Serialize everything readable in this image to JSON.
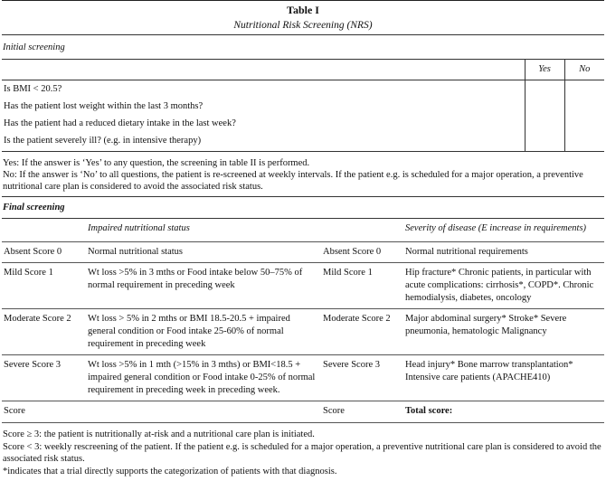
{
  "header": {
    "title": "Table I",
    "subtitle": "Nutritional Risk Screening (NRS)"
  },
  "initial": {
    "label": "Initial screening",
    "yes": "Yes",
    "no": "No",
    "questions": [
      "Is BMI < 20.5?",
      "Has the patient lost weight within the last 3 months?",
      "Has the patient had a reduced dietary intake in the last week?",
      "Is the patient severely ill? (e.g. in intensive therapy)"
    ],
    "notes": [
      "Yes: If the answer is ‘Yes’ to any question, the screening in table II is performed.",
      "No: If the answer is ‘No’ to all questions, the patient is re-screened at weekly intervals. If the patient e.g. is scheduled for a major operation, a preventive nutritional care plan is considered to avoid the associated risk status."
    ]
  },
  "final": {
    "label": "Final screening",
    "columns": [
      "Impaired nutritional status",
      "Severity of disease (E increase in requirements)"
    ],
    "rows": [
      [
        "Absent Score 0",
        "Normal nutritional status",
        "Absent Score 0",
        "Normal nutritional requirements"
      ],
      [
        "Mild Score 1",
        "Wt loss >5% in 3 mths or Food intake below 50–75% of normal requirement in preceding week",
        "Mild Score 1",
        "Hip fracture* Chronic patients, in particular with acute complications: cirrhosis*, COPD*. Chronic hemodialysis, diabetes, oncology"
      ],
      [
        "Moderate Score 2",
        "Wt loss > 5% in 2 mths or BMI 18.5-20.5 + impaired general condition or Food intake 25-60% of normal requirement in preceding week",
        "Moderate Score 2",
        "Major abdominal surgery* Stroke* Severe pneumonia, hematologic Malignancy"
      ],
      [
        "Severe Score 3",
        "Wt loss >5% in 1 mth (>15% in 3 mths) or BMI<18.5 + impaired general condition or Food intake 0-25% of normal requirement in preceding week in preceding week.",
        "Severe Score 3",
        "Head injury* Bone marrow transplantation* Intensive care patients (APACHE410)"
      ]
    ],
    "total": [
      "Score",
      "Score",
      "Total score:"
    ],
    "notes": [
      "Score ≥ 3: the patient is nutritionally at-risk and a nutritional care plan is initiated.",
      "Score < 3: weekly rescreening of the patient. If the patient e.g. is scheduled for a major operation, a preventive nutritional care plan is considered to avoid the associated risk status.",
      "*indicates that a trial directly supports the categorization of patients with that diagnosis."
    ]
  }
}
